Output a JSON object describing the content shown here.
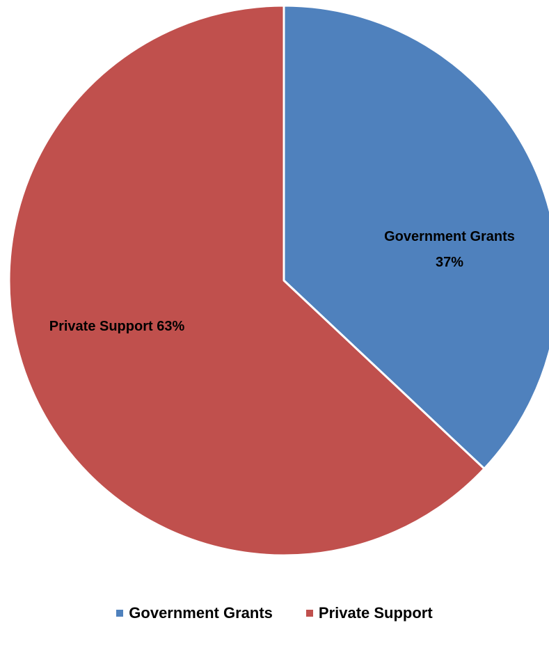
{
  "chart_data": {
    "type": "pie",
    "title": "",
    "legend_position": "bottom",
    "slices": [
      {
        "name": "Government Grants",
        "value": 37,
        "label_line1": "Government Grants",
        "label_line2": "37%",
        "color": "#4F81BD"
      },
      {
        "name": "Private Support",
        "value": 63,
        "label_line1": "Private Support 63%",
        "label_line2": "",
        "color": "#C0504D"
      }
    ]
  },
  "legend": [
    {
      "label": "Government Grants",
      "color": "#4F81BD"
    },
    {
      "label": "Private Support",
      "color": "#C0504D"
    }
  ]
}
